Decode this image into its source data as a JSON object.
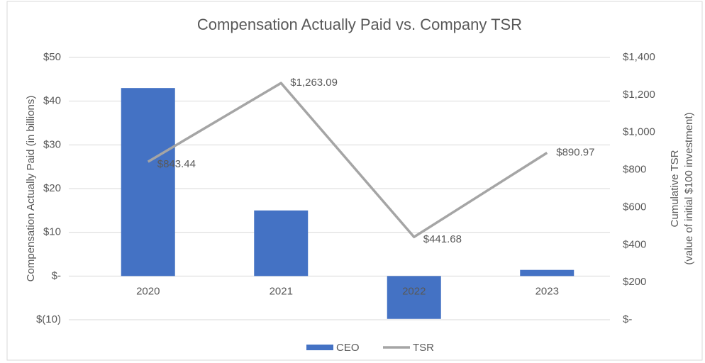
{
  "chart_data": {
    "type": "bar",
    "title": "Compensation Actually Paid vs. Company TSR",
    "categories": [
      "2020",
      "2021",
      "2022",
      "2023"
    ],
    "ylabel": "Compensation Actually Paid (in billions)",
    "y2label": [
      "Cumulative TSR",
      "(value of initial $100 investment)"
    ],
    "ylim": [
      -10,
      50
    ],
    "yticks": [
      {
        "value": -10,
        "label": "$(10)"
      },
      {
        "value": 0,
        "label": "$-"
      },
      {
        "value": 10,
        "label": "$10"
      },
      {
        "value": 20,
        "label": "$20"
      },
      {
        "value": 30,
        "label": "$30"
      },
      {
        "value": 40,
        "label": "$40"
      },
      {
        "value": 50,
        "label": "$50"
      }
    ],
    "y2lim": [
      0,
      1400
    ],
    "y2ticks": [
      {
        "value": 0,
        "label": "$-"
      },
      {
        "value": 200,
        "label": "$200"
      },
      {
        "value": 400,
        "label": "$400"
      },
      {
        "value": 600,
        "label": "$600"
      },
      {
        "value": 800,
        "label": "$800"
      },
      {
        "value": 1000,
        "label": "$1,000"
      },
      {
        "value": 1200,
        "label": "$1,200"
      },
      {
        "value": 1400,
        "label": "$1,400"
      }
    ],
    "grid": true,
    "legend": "bottom",
    "series": [
      {
        "name": "CEO",
        "type": "bar",
        "color": "#4472c4",
        "values": [
          43,
          15,
          -9.8,
          1.4
        ]
      },
      {
        "name": "TSR",
        "type": "line",
        "axis": "y2",
        "color": "#a5a5a5",
        "values": [
          843.44,
          1263.09,
          441.68,
          890.97
        ],
        "value_labels": [
          "$843.44",
          "$1,263.09",
          "$441.68",
          "$890.97"
        ]
      }
    ]
  }
}
